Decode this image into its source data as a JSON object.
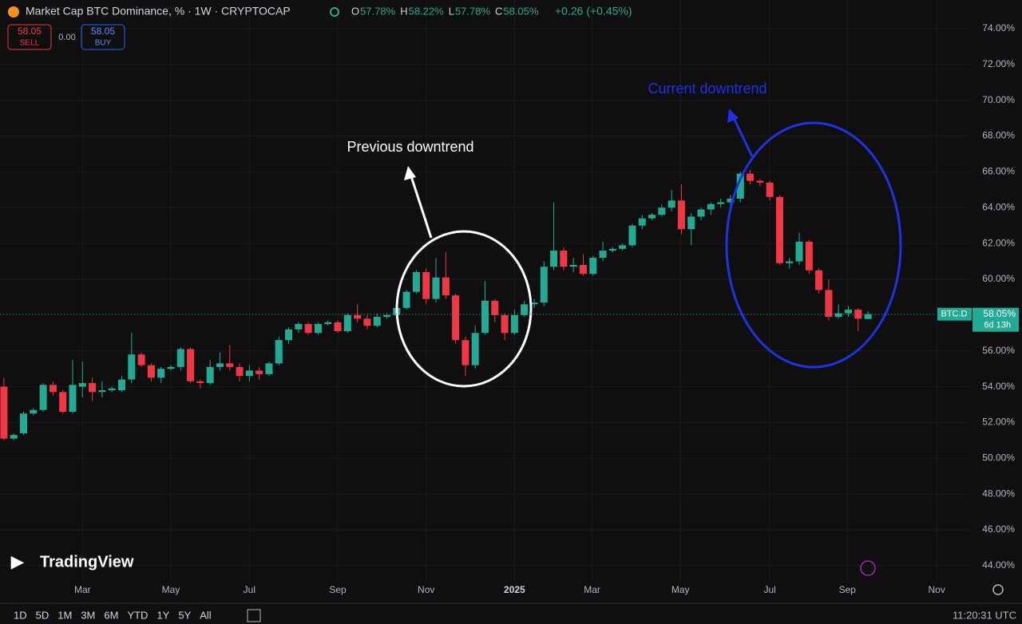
{
  "header": {
    "title": "Market Cap BTC Dominance, % · 1W · CRYPTOCAP",
    "ohlc": [
      {
        "key": "O",
        "value": "57.78%"
      },
      {
        "key": "H",
        "value": "58.22%"
      },
      {
        "key": "L",
        "value": "57.78%"
      },
      {
        "key": "C",
        "value": "58.05%"
      }
    ],
    "change": "+0.26 (+0.45%)"
  },
  "trade": {
    "sell_price": "58.05",
    "sell": "SELL",
    "spread": "0.00",
    "buy_price": "58.05",
    "buy": "BUY"
  },
  "chart_data": {
    "type": "candlestick",
    "up_color": "#22ab94",
    "down_color": "#f23645",
    "open": [
      54.0,
      51.1,
      51.4,
      52.5,
      52.7,
      54.1,
      53.7,
      52.6,
      54.0,
      54.2,
      53.7,
      53.8,
      53.8,
      54.4,
      55.8,
      55.2,
      54.5,
      55.0,
      55.1,
      56.1,
      54.3,
      54.2,
      55.1,
      55.3,
      55.1,
      54.6,
      54.9,
      54.7,
      55.3,
      56.6,
      57.2,
      57.5,
      57.0,
      57.5,
      57.6,
      57.1,
      58.0,
      57.8,
      57.4,
      57.9,
      58.0,
      58.4,
      59.3,
      60.4,
      58.9,
      60.1,
      59.1,
      56.6,
      55.2,
      57.0,
      58.8,
      58.0,
      57.0,
      58.0,
      58.6,
      58.7,
      60.7,
      61.6,
      60.7,
      60.8,
      60.3,
      61.2,
      61.6,
      61.7,
      61.9,
      63.0,
      63.4,
      63.6,
      64.0,
      64.4,
      62.8,
      63.5,
      63.9,
      64.2,
      64.3,
      64.5,
      65.9,
      65.5,
      65.4,
      64.6,
      60.9,
      61.0,
      62.1,
      60.5,
      59.4,
      57.9,
      58.1,
      58.3,
      57.78
    ],
    "high": [
      54.5,
      51.4,
      52.6,
      52.8,
      54.2,
      54.3,
      53.8,
      55.5,
      55.4,
      54.5,
      54.3,
      54.0,
      54.6,
      57.0,
      55.9,
      55.3,
      55.1,
      55.2,
      56.2,
      56.2,
      54.4,
      55.5,
      55.9,
      56.3,
      55.3,
      55.2,
      55.1,
      55.4,
      56.8,
      57.3,
      57.6,
      57.6,
      57.6,
      57.7,
      57.7,
      58.1,
      58.6,
      58.0,
      58.1,
      58.1,
      58.6,
      59.4,
      60.5,
      60.6,
      61.2,
      61.5,
      59.2,
      56.8,
      57.4,
      59.9,
      58.9,
      58.1,
      58.3,
      58.8,
      58.9,
      61.0,
      64.3,
      61.8,
      61.2,
      61.4,
      61.3,
      62.1,
      61.8,
      62.0,
      63.1,
      63.6,
      63.7,
      64.2,
      65.0,
      65.3,
      63.7,
      64.0,
      64.3,
      64.5,
      64.7,
      66.0,
      66.1,
      65.6,
      65.5,
      64.7,
      61.2,
      62.6,
      62.2,
      60.6,
      60.0,
      58.6,
      58.5,
      58.4,
      58.22
    ],
    "low": [
      51.0,
      51.0,
      51.3,
      52.4,
      52.6,
      53.5,
      52.5,
      52.5,
      53.4,
      53.2,
      53.4,
      53.7,
      53.7,
      54.2,
      55.1,
      54.3,
      54.2,
      54.9,
      54.9,
      54.2,
      53.9,
      54.1,
      54.9,
      54.9,
      54.3,
      54.3,
      54.4,
      54.6,
      55.2,
      56.4,
      57.0,
      56.9,
      56.9,
      57.4,
      57.0,
      57.0,
      57.6,
      57.2,
      57.3,
      57.8,
      57.9,
      58.3,
      59.2,
      58.6,
      58.7,
      58.9,
      56.4,
      54.6,
      55.0,
      56.9,
      57.6,
      56.6,
      56.9,
      57.9,
      58.4,
      58.5,
      60.5,
      60.5,
      60.4,
      60.2,
      60.2,
      61.0,
      61.5,
      61.6,
      61.8,
      62.8,
      63.3,
      63.5,
      63.8,
      62.5,
      61.9,
      63.3,
      63.6,
      64.0,
      63.9,
      64.3,
      65.3,
      65.2,
      64.4,
      60.8,
      60.6,
      60.8,
      60.3,
      59.2,
      57.7,
      57.8,
      57.9,
      57.1,
      57.78
    ],
    "close": [
      51.1,
      51.3,
      52.5,
      52.7,
      54.1,
      53.7,
      52.6,
      54.1,
      54.2,
      53.7,
      53.8,
      53.9,
      54.4,
      55.8,
      55.2,
      54.5,
      55.0,
      55.1,
      56.1,
      54.3,
      54.2,
      55.1,
      55.3,
      55.1,
      54.6,
      54.9,
      54.7,
      55.3,
      56.6,
      57.2,
      57.5,
      57.0,
      57.5,
      57.6,
      57.1,
      58.0,
      57.8,
      57.4,
      57.9,
      58.0,
      58.4,
      59.3,
      60.4,
      58.9,
      60.1,
      59.1,
      56.6,
      55.2,
      57.0,
      58.8,
      58.0,
      57.0,
      58.0,
      58.6,
      58.7,
      60.7,
      61.6,
      60.7,
      60.8,
      60.3,
      61.2,
      61.6,
      61.7,
      61.9,
      63.0,
      63.4,
      63.6,
      64.0,
      64.4,
      62.8,
      63.5,
      63.9,
      64.2,
      64.3,
      64.5,
      65.9,
      65.5,
      65.4,
      64.6,
      60.9,
      61.0,
      62.1,
      60.5,
      59.4,
      57.9,
      58.1,
      58.3,
      57.8,
      58.05
    ],
    "xlim": [
      -0.4,
      98.4
    ],
    "xticks": [
      {
        "value": 8.0,
        "label": "Mar"
      },
      {
        "value": 17.0,
        "label": "May"
      },
      {
        "value": 25.0,
        "label": "Jul"
      },
      {
        "value": 34.0,
        "label": "Sep"
      },
      {
        "value": 43.0,
        "label": "Nov"
      },
      {
        "value": 52.0,
        "label": "2025"
      },
      {
        "value": 59.9,
        "label": "Mar"
      },
      {
        "value": 68.9,
        "label": "May"
      },
      {
        "value": 78.0,
        "label": "Jul"
      },
      {
        "value": 85.9,
        "label": "Sep"
      },
      {
        "value": 95.0,
        "label": "Nov"
      }
    ],
    "ylim": [
      43.15,
      75.6
    ],
    "yticks": [
      {
        "value": 44,
        "label": "44.00%"
      },
      {
        "value": 46,
        "label": "46.00%"
      },
      {
        "value": 48,
        "label": "48.00%"
      },
      {
        "value": 50,
        "label": "50.00%"
      },
      {
        "value": 52,
        "label": "52.00%"
      },
      {
        "value": 54,
        "label": "54.00%"
      },
      {
        "value": 56,
        "label": "56.00%"
      },
      {
        "value": 58,
        "label": "58.00%"
      },
      {
        "value": 60,
        "label": "60.00%"
      },
      {
        "value": 62,
        "label": "62.00%"
      },
      {
        "value": 64,
        "label": "64.00%"
      },
      {
        "value": 66,
        "label": "66.00%"
      },
      {
        "value": 68,
        "label": "68.00%"
      },
      {
        "value": 70,
        "label": "70.00%"
      },
      {
        "value": 72,
        "label": "72.00%"
      },
      {
        "value": 74,
        "label": "74.00%"
      }
    ],
    "grid": true,
    "last_price": {
      "value": 58.05,
      "label": "58.05%"
    },
    "symbol": "BTC.D",
    "countdown": "6d 13h",
    "annotations": [
      "Previous downtrend",
      "Current downtrend"
    ]
  },
  "footer": {
    "brand": "TradingView",
    "timeframes": [
      "1D",
      "5D",
      "1M",
      "3M",
      "6M",
      "YTD",
      "1Y",
      "5Y",
      "All"
    ],
    "time": "11:20:31 UTC"
  }
}
